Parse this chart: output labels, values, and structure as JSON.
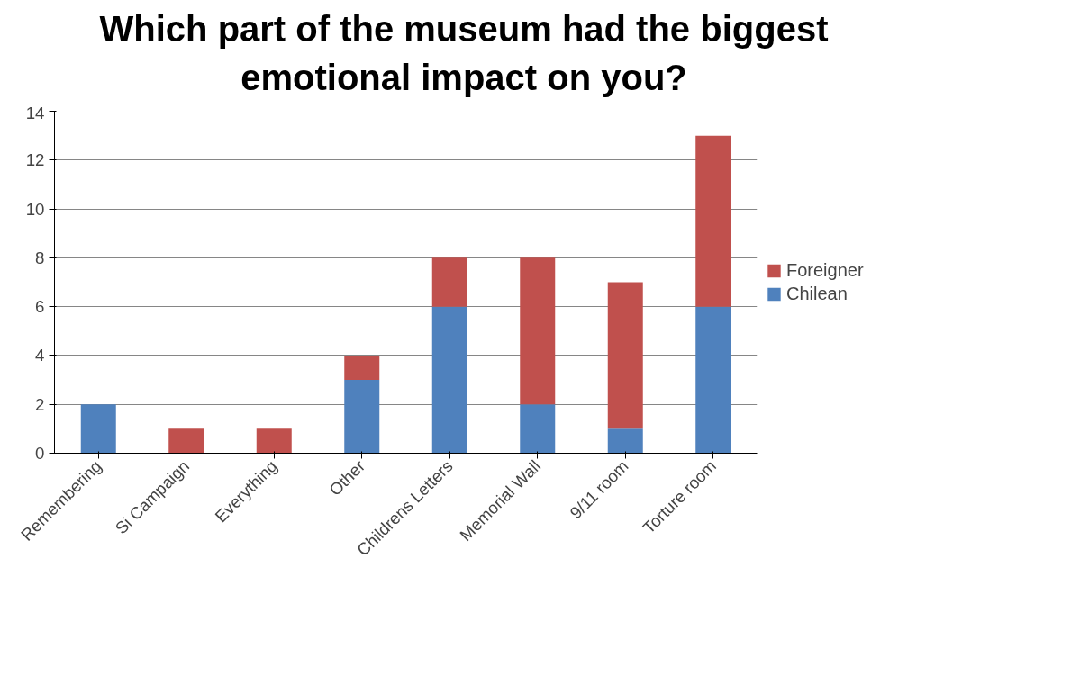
{
  "chart_data": {
    "type": "bar",
    "title": "Which part of the museum had the biggest emotional impact on you?",
    "categories": [
      "Remembering",
      "Si Campaign",
      "Everything",
      "Other",
      "Childrens Letters",
      "Memorial Wall",
      "9/11 room",
      "Torture room"
    ],
    "stacked": true,
    "series": [
      {
        "name": "Chilean",
        "color": "#4f81bd",
        "values": [
          2,
          0,
          0,
          3,
          6,
          2,
          1,
          6
        ]
      },
      {
        "name": "Foreigner",
        "color": "#c0504d",
        "values": [
          0,
          1,
          1,
          1,
          2,
          6,
          6,
          7
        ]
      }
    ],
    "ylim": [
      0,
      14
    ],
    "yticks": [
      0,
      2,
      4,
      6,
      8,
      10,
      12,
      14
    ],
    "grid": "y",
    "legend": "right"
  }
}
